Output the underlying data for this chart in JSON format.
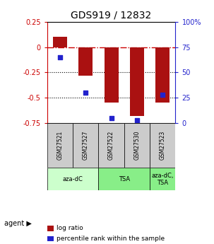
{
  "title": "GDS919 / 12832",
  "samples": [
    "GSM27521",
    "GSM27527",
    "GSM27522",
    "GSM27530",
    "GSM27523"
  ],
  "log_ratios": [
    0.1,
    -0.28,
    -0.55,
    -0.68,
    -0.55
  ],
  "percentile_ranks": [
    65,
    30,
    5,
    3,
    28
  ],
  "ylim_left": [
    -0.75,
    0.25
  ],
  "ylim_right": [
    0,
    100
  ],
  "bar_color": "#aa1111",
  "dot_color": "#2222cc",
  "agent_groups": [
    {
      "label": "aza-dC",
      "start": 0,
      "end": 2,
      "color": "#ccffcc"
    },
    {
      "label": "TSA",
      "start": 2,
      "end": 4,
      "color": "#88ee88"
    },
    {
      "label": "aza-dC,\nTSA",
      "start": 4,
      "end": 5,
      "color": "#88ee88"
    }
  ],
  "hline_zero_color": "#cc0000",
  "dotted_lines": [
    -0.25,
    -0.5
  ],
  "plot_bg_color": "#ffffff",
  "label_log_ratio": "log ratio",
  "label_percentile": "percentile rank within the sample"
}
